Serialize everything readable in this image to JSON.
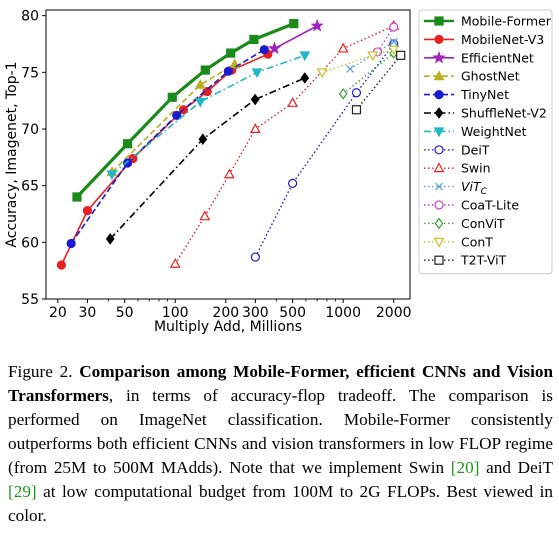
{
  "chart_data": {
    "type": "line",
    "xlabel": "Multiply Add, Millions",
    "ylabel": "Accuracy, Imagenet, Top-1",
    "xscale": "log",
    "xlim": [
      17,
      2500
    ],
    "ylim": [
      55,
      80.5
    ],
    "xticks": [
      20,
      30,
      50,
      100,
      200,
      300,
      500,
      1000,
      2000
    ],
    "yticks": [
      55,
      60,
      65,
      70,
      75,
      80
    ],
    "legend_position": "upper-right",
    "grid": false,
    "series": [
      {
        "name": "Mobile-Former",
        "color": "#1a8a1a",
        "marker": "square",
        "linestyle": "solid",
        "width": 3.2,
        "filled": true,
        "x": [
          26,
          52,
          96,
          151,
          214,
          294,
          508
        ],
        "y": [
          64.0,
          68.7,
          72.8,
          75.2,
          76.7,
          77.9,
          79.3
        ]
      },
      {
        "name": "MobileNet-V3",
        "color": "#e82020",
        "marker": "circle",
        "linestyle": "solid",
        "width": 1.6,
        "filled": true,
        "x": [
          21,
          30,
          56,
          112,
          155,
          217,
          356
        ],
        "y": [
          58.0,
          62.8,
          67.4,
          71.7,
          73.3,
          75.2,
          76.6
        ]
      },
      {
        "name": "EfficientNet",
        "color": "#a020c0",
        "marker": "star",
        "linestyle": "solid",
        "width": 1.6,
        "filled": true,
        "x": [
          390,
          700
        ],
        "y": [
          77.1,
          79.1
        ]
      },
      {
        "name": "GhostNet",
        "color": "#b8b020",
        "marker": "triangle-up",
        "linestyle": "dashed",
        "width": 1.6,
        "filled": true,
        "x": [
          42,
          141,
          226
        ],
        "y": [
          66.2,
          73.9,
          75.7
        ]
      },
      {
        "name": "TinyNet",
        "color": "#1a1ad0",
        "marker": "circle",
        "linestyle": "dashed",
        "width": 1.6,
        "filled": true,
        "x": [
          24,
          52,
          102,
          207,
          339
        ],
        "y": [
          59.9,
          67.0,
          71.2,
          75.1,
          77.0
        ]
      },
      {
        "name": "ShuffleNet-V2",
        "color": "#000000",
        "marker": "diamond",
        "linestyle": "dashdot",
        "width": 1.6,
        "filled": true,
        "x": [
          41,
          146,
          299,
          591
        ],
        "y": [
          60.3,
          69.1,
          72.6,
          74.5
        ]
      },
      {
        "name": "WeightNet",
        "color": "#20b8c8",
        "marker": "triangle-down",
        "linestyle": "dashdot",
        "width": 1.6,
        "filled": true,
        "x": [
          42,
          141,
          307,
          591
        ],
        "y": [
          66.0,
          72.4,
          75.0,
          76.5
        ]
      },
      {
        "name": "DeiT",
        "color": "#1a1ad0",
        "marker": "circle",
        "linestyle": "dotted",
        "width": 1.4,
        "filled": false,
        "x": [
          300,
          500,
          1200,
          2000
        ],
        "y": [
          58.7,
          65.2,
          73.2,
          77.5
        ]
      },
      {
        "name": "Swin",
        "color": "#e82020",
        "marker": "triangle-up",
        "linestyle": "dotted",
        "width": 1.4,
        "filled": false,
        "x": [
          100,
          150,
          210,
          300,
          500,
          1000,
          2000
        ],
        "y": [
          58.1,
          62.3,
          66.0,
          70.0,
          72.3,
          77.1,
          79.1
        ]
      },
      {
        "name": "ViTC",
        "label_main": "ViT",
        "label_sub": "C",
        "color": "#5aa8d8",
        "marker": "x",
        "linestyle": "dotted",
        "width": 1.4,
        "filled": false,
        "x": [
          1100,
          2000
        ],
        "y": [
          75.3,
          77.7
        ]
      },
      {
        "name": "CoaT-Lite",
        "color": "#d040d0",
        "marker": "circle",
        "linestyle": "dotted",
        "width": 1.4,
        "filled": false,
        "x": [
          1600,
          2000
        ],
        "y": [
          76.8,
          79.0
        ]
      },
      {
        "name": "ConViT",
        "color": "#3aa03a",
        "marker": "diamond",
        "linestyle": "dotted",
        "width": 1.4,
        "filled": false,
        "x": [
          1000,
          2000
        ],
        "y": [
          73.1,
          76.7
        ]
      },
      {
        "name": "ConT",
        "color": "#c8c020",
        "marker": "triangle-down",
        "linestyle": "dotted",
        "width": 1.4,
        "filled": false,
        "x": [
          750,
          1500,
          2000
        ],
        "y": [
          75.0,
          76.5,
          77.0
        ]
      },
      {
        "name": "T2T-ViT",
        "color": "#202020",
        "marker": "square",
        "linestyle": "dotted",
        "width": 1.4,
        "filled": false,
        "x": [
          1200,
          2200
        ],
        "y": [
          71.7,
          76.5
        ]
      }
    ]
  },
  "caption": {
    "figure_label": "Figure 2.",
    "bold_text": "Comparison among Mobile-Former, efficient CNNs and Vision Transformers",
    "text_1": ", in terms of accuracy-flop tradeoff. The comparison is performed on ImageNet classification. Mobile-Former consistently outperforms both efficient CNNs and vision transformers in low FLOP regime (from 25M to 500M MAdds). Note that we implement Swin ",
    "ref_1": "[20]",
    "text_2": " and DeiT ",
    "ref_2": "[29]",
    "text_3": " at low computational budget from 100M to 2G FLOPs. Best viewed in color."
  }
}
